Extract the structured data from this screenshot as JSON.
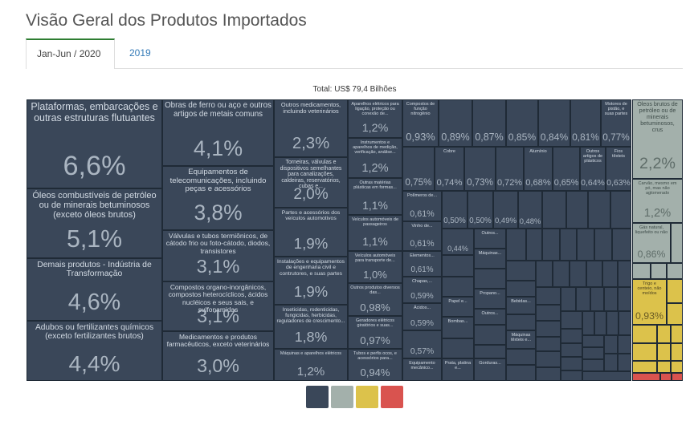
{
  "header": {
    "title": "Visão Geral dos Produtos Importados"
  },
  "tabs": [
    "Jan-Jun / 2020",
    "2019"
  ],
  "treemap": {
    "total": "Total: US$ 79,4 Bilhões",
    "tiles": [
      {
        "label": "Plataformas, embarcações e outras estruturas flutuantes",
        "value": "6,6%"
      },
      {
        "label": "Óleos combustíveis de petróleo ou de minerais betuminosos (exceto óleos brutos)",
        "value": "5,1%"
      },
      {
        "label": "Demais produtos - Indústria de Transformação",
        "value": "4,6%"
      },
      {
        "label": "Adubos ou fertilizantes químicos (exceto fertilizantes brutos)",
        "value": "4,4%"
      },
      {
        "label": "Obras de ferro ou aço e outros artigos de metais comuns",
        "value": "4,1%"
      },
      {
        "label": "Equipamentos de telecomunicações, incluindo peças e acessórios",
        "value": "3,8%"
      },
      {
        "label": "Válvulas e tubos termiônicos, de cátodo frio ou foto-cátodo, diodos, transistores",
        "value": "3,1%"
      },
      {
        "label": "Compostos organo-inorgânicos, compostos heterocíclicos, ácidos nucléicos e seus sais, e sulfonamidas",
        "value": "3,1%"
      },
      {
        "label": "Medicamentos e produtos farmacêuticos, exceto veterinários",
        "value": "3,0%"
      },
      {
        "label": "Outros medicamentos, incluindo veterinários",
        "value": "2,3%"
      },
      {
        "label": "Torneiras, válvulas e dispositivos semelhantes para canalizações, caldeiras, reservatórios, cubas e...",
        "value": "2,0%"
      },
      {
        "label": "Partes e acessórios dos veículos automotivos",
        "value": "1,9%"
      },
      {
        "label": "Instalações e equipamentos de engenharia civil e contrutores, e suas partes",
        "value": "1,9%"
      },
      {
        "label": "Inseticidas, rodenticidas, fungicidas, herbicidas, reguladores de crescimento...",
        "value": "1,8%"
      },
      {
        "label": "Máquinas e aparelhos elétricos",
        "value": "1,2%"
      },
      {
        "label": "Aparelhos elétricos para ligação, proteção ou conexão de...",
        "value": "1,2%"
      },
      {
        "label": "Instrumentos e aparelhos de medição, verificação, análise...",
        "value": "1,2%"
      },
      {
        "label": "Outras matérias plásticas em formas...",
        "value": "1,1%"
      },
      {
        "label": "Veículos automóveis de passageiros",
        "value": "1,1%"
      },
      {
        "label": "Veículos automóveis para transporte de...",
        "value": "1,0%"
      },
      {
        "label": "Outros produtos diversos das...",
        "value": "0,98%"
      },
      {
        "label": "Geradores elétricos giratórios e suas...",
        "value": "0,97%"
      },
      {
        "label": "Tubos e perfis ocos, e acessórios para...",
        "value": "0,94%"
      },
      {
        "label": "Compostos de função nitrogênio",
        "value": "0,93%"
      },
      {
        "value": "0,75%"
      },
      {
        "label": "Polímeros de...",
        "value": "0,61%"
      },
      {
        "label": "Vinho de...",
        "value": "0,61%"
      },
      {
        "label": "Elementos...",
        "value": "0,61%"
      },
      {
        "label": "Chapas,...",
        "value": "0,59%"
      },
      {
        "label": "Ácidos...",
        "value": "0,59%"
      },
      {
        "value": "0,57%"
      },
      {
        "label": "Equipamento mecânico..."
      },
      {
        "value": "0,89%"
      },
      {
        "value": "0,87%"
      },
      {
        "value": "0,85%"
      },
      {
        "value": "0,84%"
      },
      {
        "value": "0,81%"
      },
      {
        "label": "Motores de pistão, e suas partes",
        "value": "0,77%"
      },
      {
        "label": "Cobre",
        "value": "0,74%"
      },
      {
        "value": "0,73%"
      },
      {
        "value": "0,72%"
      },
      {
        "label": "Alumínio",
        "value": "0,68%"
      },
      {
        "value": "0,65%"
      },
      {
        "label": "Outros artigos de plásticos",
        "value": "0,64%"
      },
      {
        "label": "Fios têxteis",
        "value": "0,63%"
      },
      {
        "value": "0,50%"
      },
      {
        "value": "0,50%"
      },
      {
        "value": "0,49%"
      },
      {
        "value": "0,48%"
      },
      {
        "value": "0,44%"
      },
      {
        "label": "Outros..."
      },
      {
        "label": "Máquinas..."
      },
      {
        "label": "Propano..."
      },
      {
        "label": "Papel e..."
      },
      {
        "label": "Bebidas..."
      },
      {
        "label": "Outros..."
      },
      {
        "label": "Bombas..."
      },
      {
        "label": "Máquinas têxteis e..."
      },
      {
        "label": "Prata, platina e..."
      },
      {
        "label": "Gorduras..."
      },
      {
        "label": "Óleos brutos de petróleo ou de minerais betuminosos, crus",
        "value": "2,2%"
      },
      {
        "label": "Carvão, mesmo em pó, mas não aglomerado",
        "value": "1,2%"
      },
      {
        "label": "Gás natural, liquefeito ou não",
        "value": "0,86%"
      },
      {
        "label": "Trigo e centeio, não moídos",
        "value": "0,93%"
      }
    ]
  }
}
